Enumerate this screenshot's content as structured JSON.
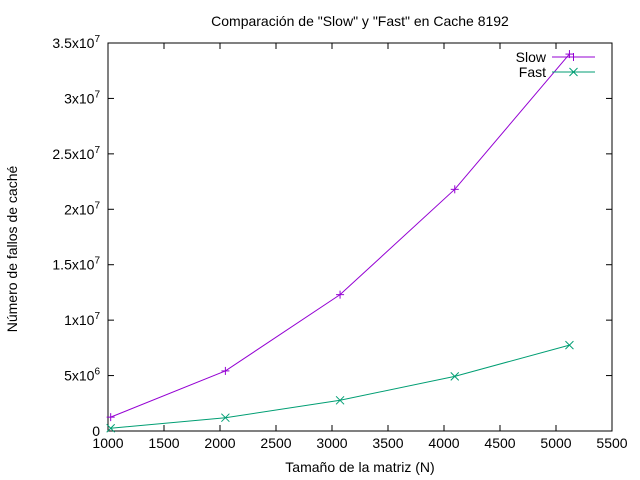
{
  "chart_data": {
    "type": "line",
    "title": "Comparación de \"Slow\" y \"Fast\" en Cache 8192",
    "xlabel": "Tamaño de la matriz (N)",
    "ylabel": "Número de fallos de caché",
    "xlim": [
      1000,
      5500
    ],
    "ylim": [
      0,
      35000000
    ],
    "x_ticks": [
      1000,
      1500,
      2000,
      2500,
      3000,
      3500,
      4000,
      4500,
      5000,
      5500
    ],
    "y_ticks": [
      {
        "value": 0,
        "mantissa": "0",
        "exponent": ""
      },
      {
        "value": 5000000,
        "mantissa": "5x10",
        "exponent": "6"
      },
      {
        "value": 10000000,
        "mantissa": "1x10",
        "exponent": "7"
      },
      {
        "value": 15000000,
        "mantissa": "1.5x10",
        "exponent": "7"
      },
      {
        "value": 20000000,
        "mantissa": "2x10",
        "exponent": "7"
      },
      {
        "value": 25000000,
        "mantissa": "2.5x10",
        "exponent": "7"
      },
      {
        "value": 30000000,
        "mantissa": "3x10",
        "exponent": "7"
      },
      {
        "value": 35000000,
        "mantissa": "3.5x10",
        "exponent": "7"
      }
    ],
    "grid": false,
    "legend_position": "top-right",
    "series": [
      {
        "name": "Slow",
        "color": "#9400d3",
        "marker": "plus",
        "points": [
          {
            "x": 1024,
            "y": 1250000
          },
          {
            "x": 2048,
            "y": 5420000
          },
          {
            "x": 3072,
            "y": 12300000
          },
          {
            "x": 4096,
            "y": 21800000
          },
          {
            "x": 5120,
            "y": 34000000
          }
        ]
      },
      {
        "name": "Fast",
        "color": "#009e73",
        "marker": "cross",
        "points": [
          {
            "x": 1024,
            "y": 250000
          },
          {
            "x": 2048,
            "y": 1200000
          },
          {
            "x": 3072,
            "y": 2770000
          },
          {
            "x": 4096,
            "y": 4930000
          },
          {
            "x": 5120,
            "y": 7750000
          }
        ]
      }
    ]
  }
}
